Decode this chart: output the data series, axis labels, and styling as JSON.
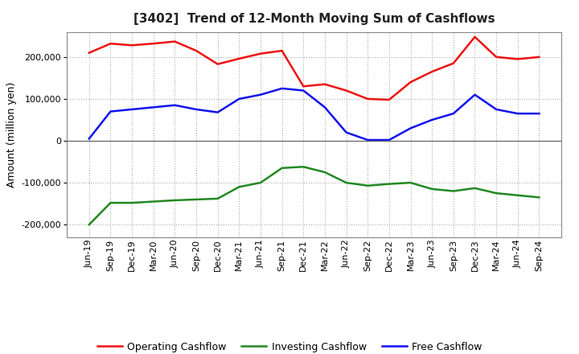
{
  "title": "[3402]  Trend of 12-Month Moving Sum of Cashflows",
  "ylabel": "Amount (million yen)",
  "ylim": [
    -230000,
    260000
  ],
  "yticks": [
    -200000,
    -100000,
    0,
    100000,
    200000
  ],
  "background_color": "#ffffff",
  "plot_bg_color": "#ffffff",
  "grid_color": "#aaaaaa",
  "labels": [
    "Jun-19",
    "Sep-19",
    "Dec-19",
    "Mar-20",
    "Jun-20",
    "Sep-20",
    "Dec-20",
    "Mar-21",
    "Jun-21",
    "Sep-21",
    "Dec-21",
    "Mar-22",
    "Jun-22",
    "Sep-22",
    "Dec-22",
    "Mar-23",
    "Jun-23",
    "Sep-23",
    "Dec-23",
    "Mar-24",
    "Jun-24",
    "Sep-24"
  ],
  "operating": [
    210000,
    232000,
    228000,
    232000,
    237000,
    215000,
    183000,
    196000,
    208000,
    215000,
    130000,
    135000,
    120000,
    100000,
    98000,
    140000,
    165000,
    185000,
    248000,
    200000,
    195000,
    200000
  ],
  "investing": [
    -200000,
    -148000,
    -148000,
    -145000,
    -142000,
    -140000,
    -138000,
    -110000,
    -100000,
    -65000,
    -62000,
    -75000,
    -100000,
    -107000,
    -103000,
    -100000,
    -115000,
    -120000,
    -113000,
    -125000,
    -130000,
    -135000
  ],
  "free": [
    5000,
    70000,
    75000,
    80000,
    85000,
    75000,
    68000,
    100000,
    110000,
    125000,
    120000,
    80000,
    20000,
    2000,
    2000,
    30000,
    50000,
    65000,
    110000,
    75000,
    65000,
    65000
  ],
  "op_color": "#ee1111",
  "inv_color": "#228822",
  "free_color": "#1111ee",
  "legend_labels": [
    "Operating Cashflow",
    "Investing Cashflow",
    "Free Cashflow"
  ],
  "linewidth": 1.8,
  "title_color": "#222222",
  "title_fontsize": 11,
  "tick_fontsize": 8,
  "ylabel_fontsize": 9,
  "legend_fontsize": 9
}
